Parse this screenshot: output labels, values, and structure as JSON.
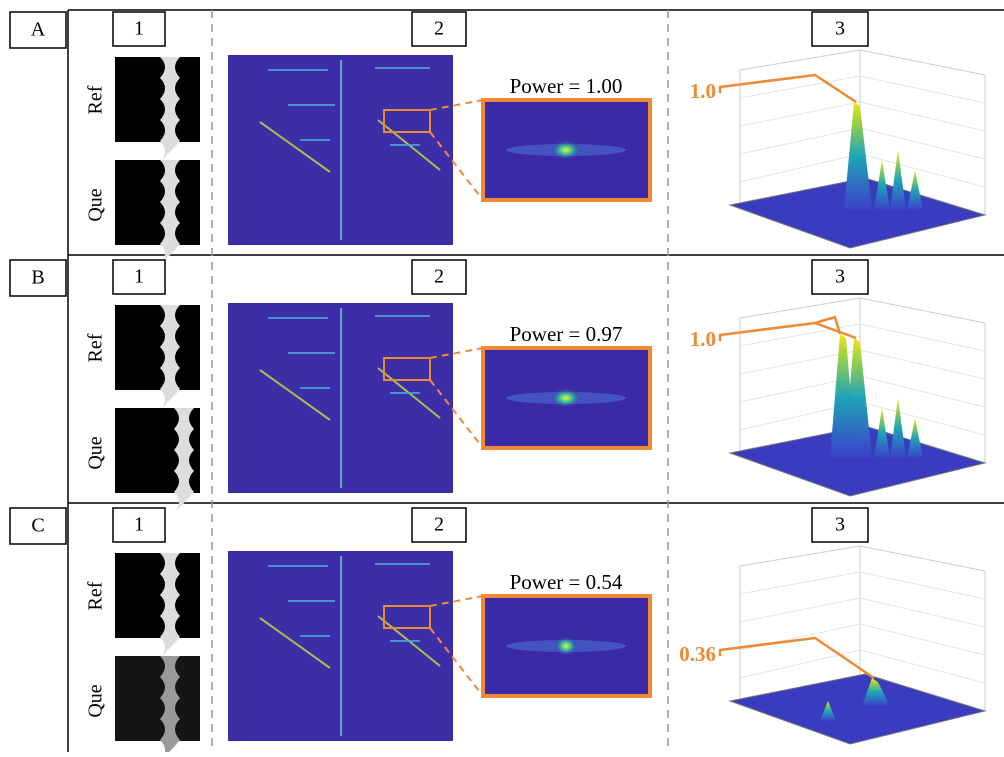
{
  "rows": [
    {
      "label": "A",
      "panels": [
        "1",
        "2",
        "3"
      ],
      "ref": "Ref",
      "que": "Que",
      "power": "Power = 1.00",
      "peak_label": "1.0"
    },
    {
      "label": "B",
      "panels": [
        "1",
        "2",
        "3"
      ],
      "ref": "Ref",
      "que": "Que",
      "power": "Power = 0.97",
      "peak_label": "1.0"
    },
    {
      "label": "C",
      "panels": [
        "1",
        "2",
        "3"
      ],
      "ref": "Ref",
      "que": "Que",
      "power": "Power = 0.54",
      "peak_label": "0.36"
    }
  ]
}
